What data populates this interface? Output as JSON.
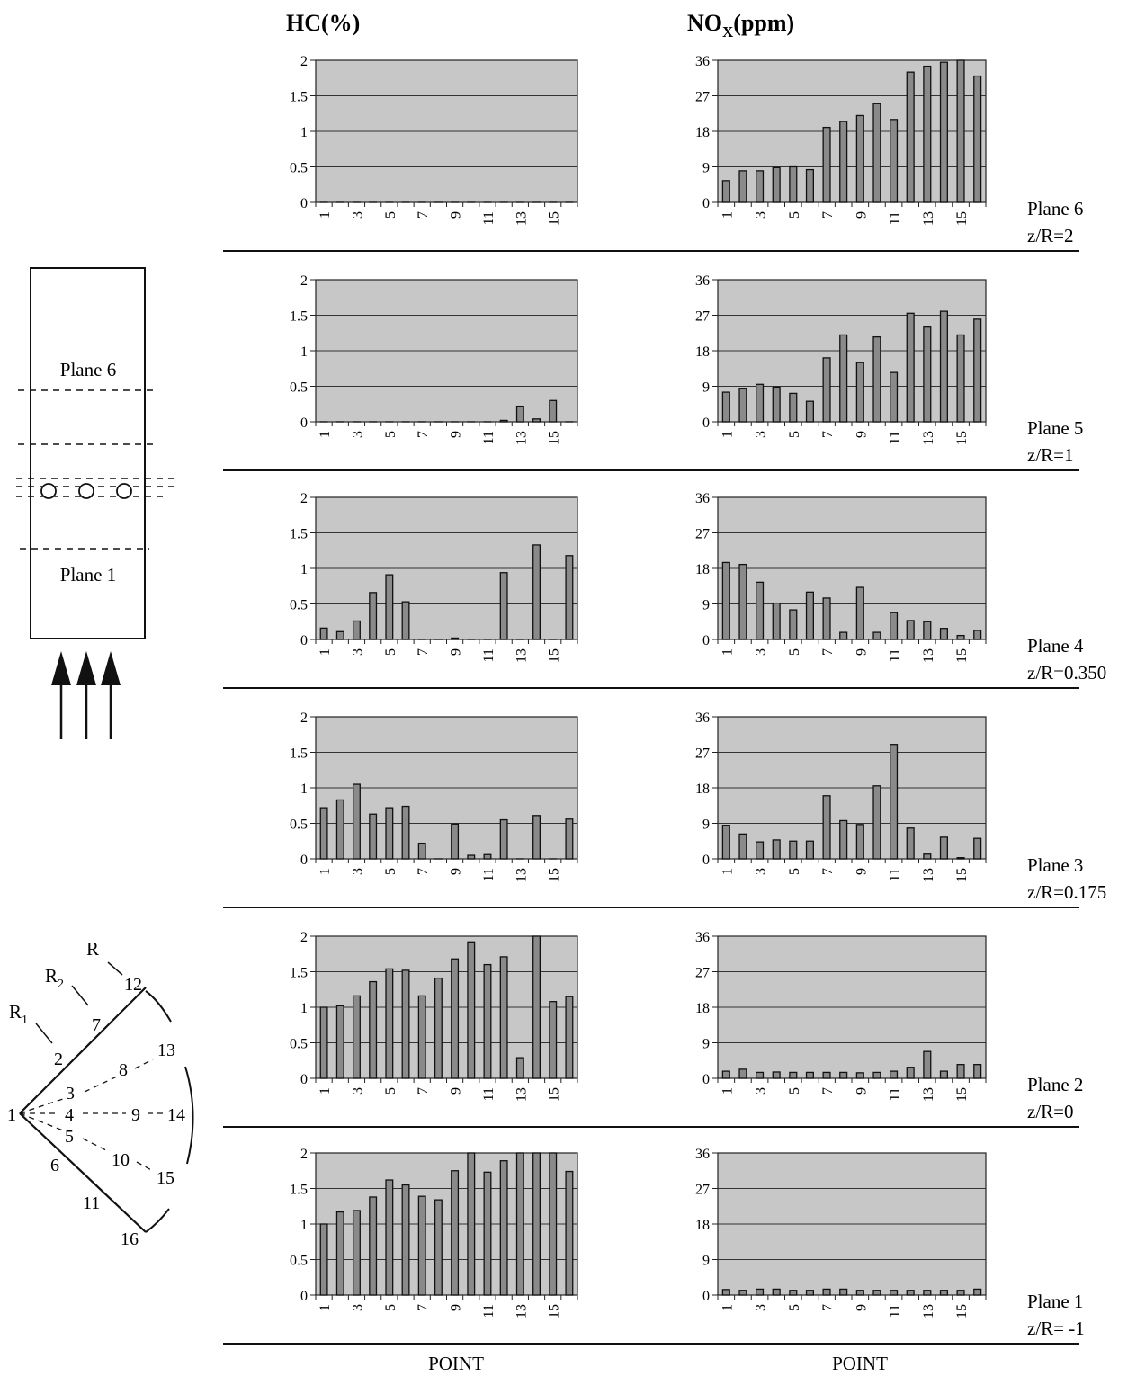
{
  "headers": {
    "hc": "HC(%)",
    "nox_main": "NO",
    "nox_sub": "X",
    "nox_unit": "(ppm)",
    "xlabel_left": "POINT",
    "xlabel_right": "POINT"
  },
  "schematic": {
    "upper_label": "Plane 6",
    "lower_label": "Plane 1"
  },
  "geometry_diagram": {
    "radius_labels": [
      "R",
      "R",
      "R"
    ],
    "radius_subscripts": [
      "",
      "2",
      "1"
    ],
    "points": [
      "1",
      "2",
      "3",
      "4",
      "5",
      "6",
      "7",
      "8",
      "9",
      "10",
      "11",
      "12",
      "13",
      "14",
      "15",
      "16"
    ]
  },
  "planes": [
    {
      "name": "Plane 6",
      "zr": "z/R=2"
    },
    {
      "name": "Plane 5",
      "zr": "z/R=1"
    },
    {
      "name": "Plane 4",
      "zr": "z/R=0.350"
    },
    {
      "name": "Plane 3",
      "zr": "z/R=0.175"
    },
    {
      "name": "Plane 2",
      "zr": "z/R=0"
    },
    {
      "name": "Plane 1",
      "zr": "z/R= -1"
    }
  ],
  "chart_data": [
    {
      "type": "bar",
      "id": "hc-plane6",
      "plane": "Plane 6",
      "quantity": "HC(%)",
      "xlabel": "POINT",
      "categories": [
        1,
        2,
        3,
        4,
        5,
        6,
        7,
        8,
        9,
        10,
        11,
        12,
        13,
        14,
        15,
        16
      ],
      "values": [
        0,
        0,
        0,
        0,
        0,
        0,
        0,
        0,
        0,
        0,
        0,
        0,
        0,
        0,
        0,
        0
      ],
      "ylim": [
        0,
        2
      ],
      "yticks": [
        "0",
        "0.5",
        "1",
        "1.5",
        "2"
      ],
      "xticks": [
        "1",
        "3",
        "5",
        "7",
        "9",
        "11",
        "13",
        "15"
      ]
    },
    {
      "type": "bar",
      "id": "nox-plane6",
      "plane": "Plane 6",
      "quantity": "NOX(ppm)",
      "xlabel": "POINT",
      "categories": [
        1,
        2,
        3,
        4,
        5,
        6,
        7,
        8,
        9,
        10,
        11,
        12,
        13,
        14,
        15,
        16
      ],
      "values": [
        5.5,
        8,
        8,
        8.8,
        9,
        8.3,
        19,
        20.5,
        22,
        25,
        21,
        33,
        34.5,
        35.5,
        36.5,
        32
      ],
      "ylim": [
        0,
        36
      ],
      "yticks": [
        "0",
        "9",
        "18",
        "27",
        "36"
      ],
      "xticks": [
        "1",
        "3",
        "5",
        "7",
        "9",
        "11",
        "13",
        "15"
      ]
    },
    {
      "type": "bar",
      "id": "hc-plane5",
      "plane": "Plane 5",
      "quantity": "HC(%)",
      "xlabel": "POINT",
      "categories": [
        1,
        2,
        3,
        4,
        5,
        6,
        7,
        8,
        9,
        10,
        11,
        12,
        13,
        14,
        15,
        16
      ],
      "values": [
        0,
        0,
        0,
        0,
        0,
        0,
        0,
        0,
        0,
        0,
        0,
        0.02,
        0.22,
        0.04,
        0.3,
        0
      ],
      "ylim": [
        0,
        2
      ],
      "yticks": [
        "0",
        "0.5",
        "1",
        "1.5",
        "2"
      ],
      "xticks": [
        "1",
        "3",
        "5",
        "7",
        "9",
        "11",
        "13",
        "15"
      ]
    },
    {
      "type": "bar",
      "id": "nox-plane5",
      "plane": "Plane 5",
      "quantity": "NOX(ppm)",
      "xlabel": "POINT",
      "categories": [
        1,
        2,
        3,
        4,
        5,
        6,
        7,
        8,
        9,
        10,
        11,
        12,
        13,
        14,
        15,
        16
      ],
      "values": [
        7.5,
        8.5,
        9.5,
        8.8,
        7.2,
        5.2,
        16.2,
        22,
        15,
        21.5,
        12.5,
        27.5,
        24,
        28,
        22,
        26
      ],
      "ylim": [
        0,
        36
      ],
      "yticks": [
        "0",
        "9",
        "18",
        "27",
        "36"
      ],
      "xticks": [
        "1",
        "3",
        "5",
        "7",
        "9",
        "11",
        "13",
        "15"
      ]
    },
    {
      "type": "bar",
      "id": "hc-plane4",
      "plane": "Plane 4",
      "quantity": "HC(%)",
      "xlabel": "POINT",
      "categories": [
        1,
        2,
        3,
        4,
        5,
        6,
        7,
        8,
        9,
        10,
        11,
        12,
        13,
        14,
        15,
        16
      ],
      "values": [
        0.16,
        0.11,
        0.26,
        0.66,
        0.91,
        0.53,
        0,
        0,
        0.02,
        0,
        0,
        0.94,
        0,
        1.33,
        0,
        1.18
      ],
      "ylim": [
        0,
        2
      ],
      "yticks": [
        "0",
        "0.5",
        "1",
        "1.5",
        "2"
      ],
      "xticks": [
        "1",
        "3",
        "5",
        "7",
        "9",
        "11",
        "13",
        "15"
      ]
    },
    {
      "type": "bar",
      "id": "nox-plane4",
      "plane": "Plane 4",
      "quantity": "NOX(ppm)",
      "xlabel": "POINT",
      "categories": [
        1,
        2,
        3,
        4,
        5,
        6,
        7,
        8,
        9,
        10,
        11,
        12,
        13,
        14,
        15,
        16
      ],
      "values": [
        19.5,
        19,
        14.5,
        9.2,
        7.5,
        12,
        10.5,
        1.8,
        13.2,
        1.8,
        6.8,
        4.8,
        4.5,
        2.8,
        1,
        2.3
      ],
      "ylim": [
        0,
        36
      ],
      "yticks": [
        "0",
        "9",
        "18",
        "27",
        "36"
      ],
      "xticks": [
        "1",
        "3",
        "5",
        "7",
        "9",
        "11",
        "13",
        "15"
      ]
    },
    {
      "type": "bar",
      "id": "hc-plane3",
      "plane": "Plane 3",
      "quantity": "HC(%)",
      "xlabel": "POINT",
      "categories": [
        1,
        2,
        3,
        4,
        5,
        6,
        7,
        8,
        9,
        10,
        11,
        12,
        13,
        14,
        15,
        16
      ],
      "values": [
        0.72,
        0.83,
        1.05,
        0.63,
        0.72,
        0.74,
        0.22,
        0,
        0.49,
        0.05,
        0.06,
        0.55,
        0,
        0.61,
        0,
        0.56
      ],
      "ylim": [
        0,
        2
      ],
      "yticks": [
        "0",
        "0.5",
        "1",
        "1.5",
        "2"
      ],
      "xticks": [
        "1",
        "3",
        "5",
        "7",
        "9",
        "11",
        "13",
        "15"
      ]
    },
    {
      "type": "bar",
      "id": "nox-plane3",
      "plane": "Plane 3",
      "quantity": "NOX(ppm)",
      "xlabel": "POINT",
      "categories": [
        1,
        2,
        3,
        4,
        5,
        6,
        7,
        8,
        9,
        10,
        11,
        12,
        13,
        14,
        15,
        16
      ],
      "values": [
        8.5,
        6.3,
        4.3,
        4.8,
        4.5,
        4.5,
        16,
        9.7,
        8.7,
        18.5,
        29,
        7.8,
        1.2,
        5.5,
        0.3,
        5.2
      ],
      "ylim": [
        0,
        36
      ],
      "yticks": [
        "0",
        "9",
        "18",
        "27",
        "36"
      ],
      "xticks": [
        "1",
        "3",
        "5",
        "7",
        "9",
        "11",
        "13",
        "15"
      ]
    },
    {
      "type": "bar",
      "id": "hc-plane2",
      "plane": "Plane 2",
      "quantity": "HC(%)",
      "xlabel": "POINT",
      "categories": [
        1,
        2,
        3,
        4,
        5,
        6,
        7,
        8,
        9,
        10,
        11,
        12,
        13,
        14,
        15,
        16
      ],
      "values": [
        1.0,
        1.02,
        1.16,
        1.36,
        1.54,
        1.52,
        1.16,
        1.41,
        1.68,
        1.92,
        1.6,
        1.71,
        0.29,
        2.0,
        1.08,
        1.15
      ],
      "ylim": [
        0,
        2
      ],
      "yticks": [
        "0",
        "0.5",
        "1",
        "1.5",
        "2"
      ],
      "xticks": [
        "1",
        "3",
        "5",
        "7",
        "9",
        "11",
        "13",
        "15"
      ]
    },
    {
      "type": "bar",
      "id": "nox-plane2",
      "plane": "Plane 2",
      "quantity": "NOX(ppm)",
      "xlabel": "POINT",
      "categories": [
        1,
        2,
        3,
        4,
        5,
        6,
        7,
        8,
        9,
        10,
        11,
        12,
        13,
        14,
        15,
        16
      ],
      "values": [
        1.8,
        2.3,
        1.5,
        1.6,
        1.5,
        1.5,
        1.5,
        1.5,
        1.4,
        1.5,
        1.8,
        2.8,
        6.8,
        1.8,
        3.5,
        3.5
      ],
      "ylim": [
        0,
        36
      ],
      "yticks": [
        "0",
        "9",
        "18",
        "27",
        "36"
      ],
      "xticks": [
        "1",
        "3",
        "5",
        "7",
        "9",
        "11",
        "13",
        "15"
      ]
    },
    {
      "type": "bar",
      "id": "hc-plane1",
      "plane": "Plane 1",
      "quantity": "HC(%)",
      "xlabel": "POINT",
      "categories": [
        1,
        2,
        3,
        4,
        5,
        6,
        7,
        8,
        9,
        10,
        11,
        12,
        13,
        14,
        15,
        16
      ],
      "values": [
        1.0,
        1.17,
        1.19,
        1.38,
        1.62,
        1.55,
        1.39,
        1.34,
        1.75,
        2.0,
        1.73,
        1.89,
        2.05,
        2.05,
        2.05,
        1.74
      ],
      "ylim": [
        0,
        2
      ],
      "yticks": [
        "0",
        "0.5",
        "1",
        "1.5",
        "2"
      ],
      "xticks": [
        "1",
        "3",
        "5",
        "7",
        "9",
        "11",
        "13",
        "15"
      ]
    },
    {
      "type": "bar",
      "id": "nox-plane1",
      "plane": "Plane 1",
      "quantity": "NOX(ppm)",
      "xlabel": "POINT",
      "categories": [
        1,
        2,
        3,
        4,
        5,
        6,
        7,
        8,
        9,
        10,
        11,
        12,
        13,
        14,
        15,
        16
      ],
      "values": [
        1.4,
        1.2,
        1.5,
        1.5,
        1.2,
        1.2,
        1.5,
        1.5,
        1.2,
        1.2,
        1.2,
        1.2,
        1.2,
        1.2,
        1.2,
        1.5
      ],
      "ylim": [
        0,
        36
      ],
      "yticks": [
        "0",
        "9",
        "18",
        "27",
        "36"
      ],
      "xticks": [
        "1",
        "3",
        "5",
        "7",
        "9",
        "11",
        "13",
        "15"
      ]
    }
  ]
}
